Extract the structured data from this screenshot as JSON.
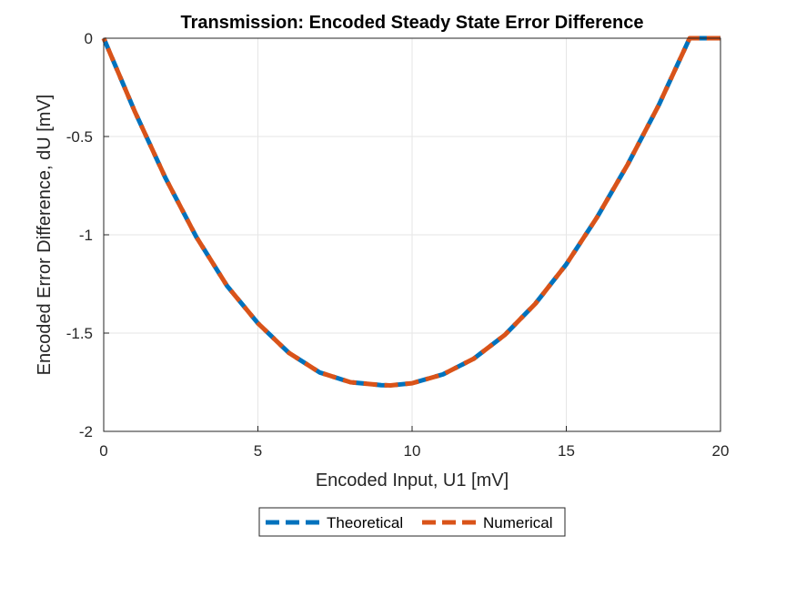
{
  "chart_data": {
    "type": "line",
    "title": "Transmission: Encoded Steady State Error Difference",
    "xlabel": "Encoded Input, U1 [mV]",
    "ylabel": "Encoded Error Difference, dU [mV]",
    "xlim": [
      0,
      20
    ],
    "ylim": [
      -2,
      0
    ],
    "xticks": [
      "0",
      "5",
      "10",
      "15",
      "20"
    ],
    "xtick_values": [
      0,
      5,
      10,
      15,
      20
    ],
    "yticks": [
      "0",
      "-0.5",
      "-1",
      "-1.5",
      "-2"
    ],
    "ytick_values": [
      0,
      -0.5,
      -1,
      -1.5,
      -2
    ],
    "grid": true,
    "legend_position": "bottom-outside",
    "x": [
      0,
      1,
      2,
      3,
      4,
      5,
      6,
      7,
      8,
      9,
      9.3,
      10,
      11,
      12,
      13,
      14,
      15,
      16,
      17,
      18,
      19,
      20
    ],
    "series": [
      {
        "name": "Theoretical",
        "color": "#0072BD",
        "values": [
          0,
          -0.37,
          -0.71,
          -1.01,
          -1.26,
          -1.45,
          -1.6,
          -1.7,
          -1.75,
          -1.765,
          -1.766,
          -1.755,
          -1.71,
          -1.63,
          -1.51,
          -1.35,
          -1.15,
          -0.91,
          -0.64,
          -0.34,
          0.0,
          0.0
        ]
      },
      {
        "name": "Numerical",
        "color": "#D95319",
        "values": [
          0,
          -0.37,
          -0.71,
          -1.01,
          -1.26,
          -1.45,
          -1.6,
          -1.7,
          -1.75,
          -1.765,
          -1.766,
          -1.755,
          -1.71,
          -1.63,
          -1.51,
          -1.35,
          -1.15,
          -0.91,
          -0.64,
          -0.34,
          0.0,
          0.0
        ]
      }
    ]
  }
}
